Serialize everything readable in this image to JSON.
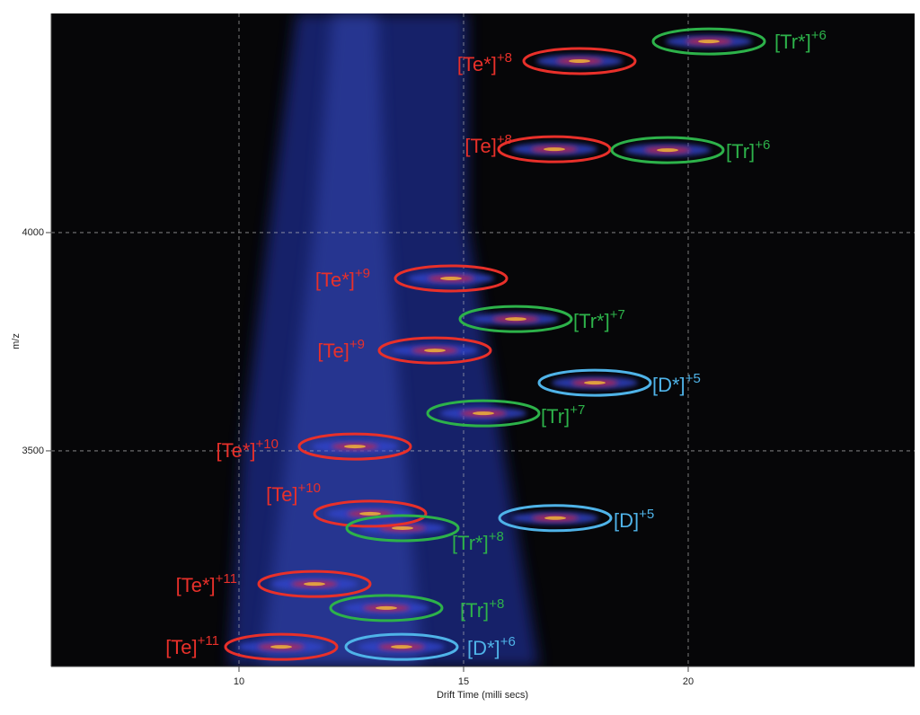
{
  "chart_data": {
    "type": "heatmap",
    "x_label": "Drift Time (milli secs)",
    "y_label": "m/z",
    "xlim": [
      5.82,
      25.04
    ],
    "ylim": [
      3006,
      4502
    ],
    "xticks": [
      10,
      15,
      20
    ],
    "yticks": [
      3500,
      4000
    ],
    "grid": true,
    "annotations": [
      {
        "label": "[Tr*]",
        "charge": "+6",
        "x": 20.46,
        "y": 4438,
        "color": "#2db24a"
      },
      {
        "label": "[Te*]",
        "charge": "+8",
        "x": 17.58,
        "y": 4393,
        "color": "#e8302a"
      },
      {
        "label": "[Te]",
        "charge": "+8",
        "x": 17.02,
        "y": 4191,
        "color": "#e8302a"
      },
      {
        "label": "[Tr]",
        "charge": "+6",
        "x": 19.54,
        "y": 4189,
        "color": "#2db24a"
      },
      {
        "label": "[Te*]",
        "charge": "+9",
        "x": 14.72,
        "y": 3895,
        "color": "#e8302a"
      },
      {
        "label": "[Tr*]",
        "charge": "+7",
        "x": 16.16,
        "y": 3802,
        "color": "#2db24a"
      },
      {
        "label": "[Te]",
        "charge": "+9",
        "x": 14.36,
        "y": 3730,
        "color": "#e8302a"
      },
      {
        "label": "[D*]",
        "charge": "+5",
        "x": 17.92,
        "y": 3656,
        "color": "#4fb3e8"
      },
      {
        "label": "[Tr]",
        "charge": "+7",
        "x": 15.44,
        "y": 3586,
        "color": "#2db24a"
      },
      {
        "label": "[Te*]",
        "charge": "+10",
        "x": 12.58,
        "y": 3510,
        "color": "#e8302a"
      },
      {
        "label": "[Te]",
        "charge": "+10",
        "x": 12.92,
        "y": 3356,
        "color": "#e8302a"
      },
      {
        "label": "[D]",
        "charge": "+5",
        "x": 17.04,
        "y": 3346,
        "color": "#4fb3e8"
      },
      {
        "label": "[Tr*]",
        "charge": "+8",
        "x": 13.64,
        "y": 3323,
        "color": "#2db24a"
      },
      {
        "label": "[Te*]",
        "charge": "+11",
        "x": 11.68,
        "y": 3195,
        "color": "#e8302a"
      },
      {
        "label": "[Tr]",
        "charge": "+8",
        "x": 13.28,
        "y": 3140,
        "color": "#2db24a"
      },
      {
        "label": "[Te]",
        "charge": "+11",
        "x": 10.94,
        "y": 3051,
        "color": "#e8302a"
      },
      {
        "label": "[D*]",
        "charge": "+6",
        "x": 13.62,
        "y": 3051,
        "color": "#4fb3e8"
      }
    ]
  }
}
